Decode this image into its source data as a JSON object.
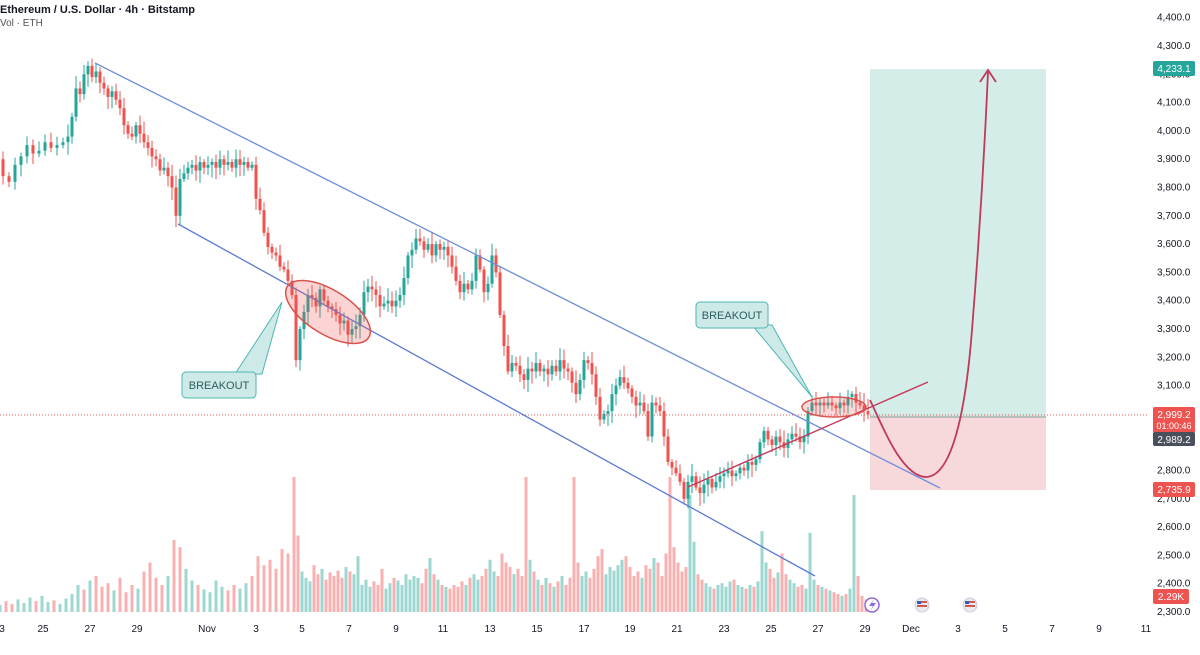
{
  "header": {
    "title": "Ethereum / U.S. Dollar · 4h · Bitstamp",
    "volume_label": "Vol · ETH"
  },
  "chart_data": {
    "type": "candlestick",
    "symbol": "ETHUSD",
    "timeframe": "4h",
    "exchange": "Bitstamp",
    "y_axis": {
      "ticks": [
        "2,300.0",
        "2,400.0",
        "2,500.0",
        "2,600.0",
        "2,700.0",
        "2,800.0",
        "2,900.0",
        "3,000.0",
        "3,100.0",
        "3,200.0",
        "3,300.0",
        "3,400.0",
        "3,500.0",
        "3,600.0",
        "3,700.0",
        "3,800.0",
        "3,900.0",
        "4,000.0",
        "4,100.0",
        "4,200.0",
        "4,300.0",
        "4,400.0"
      ],
      "range": [
        2300,
        4400
      ]
    },
    "x_axis": {
      "ticks": [
        "3",
        "25",
        "27",
        "29",
        "Nov",
        "3",
        "5",
        "7",
        "9",
        "11",
        "13",
        "15",
        "17",
        "19",
        "21",
        "23",
        "25",
        "27",
        "29",
        "Dec",
        "3",
        "5",
        "7",
        "9",
        "11"
      ]
    },
    "price_path": [
      [
        0,
        3900
      ],
      [
        6,
        3840
      ],
      [
        12,
        3820
      ],
      [
        18,
        3880
      ],
      [
        24,
        3910
      ],
      [
        30,
        3950
      ],
      [
        36,
        3920
      ],
      [
        42,
        3930
      ],
      [
        48,
        3960
      ],
      [
        54,
        3940
      ],
      [
        60,
        3950
      ],
      [
        66,
        3960
      ],
      [
        70,
        3980
      ],
      [
        74,
        4050
      ],
      [
        78,
        4150
      ],
      [
        82,
        4130
      ],
      [
        86,
        4200
      ],
      [
        90,
        4230
      ],
      [
        94,
        4190
      ],
      [
        98,
        4210
      ],
      [
        102,
        4170
      ],
      [
        106,
        4150
      ],
      [
        110,
        4120
      ],
      [
        114,
        4140
      ],
      [
        118,
        4110
      ],
      [
        122,
        4080
      ],
      [
        126,
        4020
      ],
      [
        130,
        3990
      ],
      [
        134,
        3980
      ],
      [
        138,
        4020
      ],
      [
        142,
        3990
      ],
      [
        146,
        3960
      ],
      [
        150,
        3940
      ],
      [
        154,
        3910
      ],
      [
        158,
        3900
      ],
      [
        162,
        3860
      ],
      [
        166,
        3870
      ],
      [
        170,
        3840
      ],
      [
        174,
        3800
      ],
      [
        178,
        3700
      ],
      [
        182,
        3830
      ],
      [
        186,
        3850
      ],
      [
        190,
        3870
      ],
      [
        194,
        3880
      ],
      [
        198,
        3860
      ],
      [
        202,
        3890
      ],
      [
        206,
        3870
      ],
      [
        210,
        3880
      ],
      [
        214,
        3890
      ],
      [
        218,
        3870
      ],
      [
        222,
        3900
      ],
      [
        226,
        3880
      ],
      [
        230,
        3890
      ],
      [
        234,
        3870
      ],
      [
        238,
        3900
      ],
      [
        242,
        3880
      ],
      [
        246,
        3890
      ],
      [
        250,
        3870
      ],
      [
        254,
        3880
      ],
      [
        258,
        3760
      ],
      [
        262,
        3720
      ],
      [
        266,
        3640
      ],
      [
        270,
        3590
      ],
      [
        274,
        3570
      ],
      [
        278,
        3560
      ],
      [
        282,
        3520
      ],
      [
        286,
        3510
      ],
      [
        290,
        3470
      ],
      [
        294,
        3420
      ],
      [
        298,
        3190
      ],
      [
        302,
        3300
      ],
      [
        306,
        3360
      ],
      [
        310,
        3420
      ],
      [
        314,
        3410
      ],
      [
        318,
        3380
      ],
      [
        322,
        3440
      ],
      [
        326,
        3400
      ],
      [
        330,
        3380
      ],
      [
        334,
        3370
      ],
      [
        338,
        3350
      ],
      [
        342,
        3320
      ],
      [
        346,
        3330
      ],
      [
        350,
        3280
      ],
      [
        354,
        3300
      ],
      [
        358,
        3310
      ],
      [
        362,
        3350
      ],
      [
        366,
        3430
      ],
      [
        370,
        3450
      ],
      [
        374,
        3440
      ],
      [
        378,
        3420
      ],
      [
        382,
        3380
      ],
      [
        386,
        3390
      ],
      [
        390,
        3400
      ],
      [
        394,
        3380
      ],
      [
        398,
        3400
      ],
      [
        402,
        3420
      ],
      [
        406,
        3480
      ],
      [
        410,
        3560
      ],
      [
        414,
        3580
      ],
      [
        418,
        3620
      ],
      [
        422,
        3610
      ],
      [
        426,
        3580
      ],
      [
        430,
        3600
      ],
      [
        434,
        3560
      ],
      [
        438,
        3600
      ],
      [
        442,
        3580
      ],
      [
        446,
        3590
      ],
      [
        450,
        3560
      ],
      [
        454,
        3520
      ],
      [
        458,
        3470
      ],
      [
        462,
        3430
      ],
      [
        466,
        3460
      ],
      [
        470,
        3440
      ],
      [
        474,
        3470
      ],
      [
        478,
        3560
      ],
      [
        482,
        3510
      ],
      [
        486,
        3430
      ],
      [
        490,
        3460
      ],
      [
        494,
        3560
      ],
      [
        498,
        3500
      ],
      [
        502,
        3350
      ],
      [
        506,
        3240
      ],
      [
        510,
        3150
      ],
      [
        514,
        3180
      ],
      [
        518,
        3170
      ],
      [
        522,
        3140
      ],
      [
        526,
        3120
      ],
      [
        530,
        3160
      ],
      [
        534,
        3150
      ],
      [
        538,
        3180
      ],
      [
        542,
        3150
      ],
      [
        546,
        3160
      ],
      [
        550,
        3140
      ],
      [
        554,
        3170
      ],
      [
        558,
        3150
      ],
      [
        562,
        3190
      ],
      [
        566,
        3160
      ],
      [
        570,
        3150
      ],
      [
        574,
        3110
      ],
      [
        578,
        3070
      ],
      [
        582,
        3120
      ],
      [
        586,
        3190
      ],
      [
        590,
        3180
      ],
      [
        594,
        3140
      ],
      [
        598,
        3060
      ],
      [
        602,
        2980
      ],
      [
        606,
        3000
      ],
      [
        610,
        3010
      ],
      [
        614,
        3070
      ],
      [
        618,
        3100
      ],
      [
        622,
        3130
      ],
      [
        626,
        3110
      ],
      [
        630,
        3090
      ],
      [
        634,
        3060
      ],
      [
        638,
        3030
      ],
      [
        642,
        3040
      ],
      [
        646,
        3010
      ],
      [
        650,
        2920
      ],
      [
        654,
        3040
      ],
      [
        658,
        3030
      ],
      [
        662,
        3010
      ],
      [
        666,
        2920
      ],
      [
        670,
        2830
      ],
      [
        674,
        2810
      ],
      [
        678,
        2790
      ],
      [
        682,
        2760
      ],
      [
        686,
        2700
      ],
      [
        690,
        2760
      ],
      [
        694,
        2780
      ],
      [
        698,
        2740
      ],
      [
        702,
        2720
      ],
      [
        706,
        2750
      ],
      [
        710,
        2770
      ],
      [
        714,
        2740
      ],
      [
        718,
        2760
      ],
      [
        722,
        2780
      ],
      [
        726,
        2790
      ],
      [
        730,
        2800
      ],
      [
        734,
        2780
      ],
      [
        738,
        2790
      ],
      [
        742,
        2810
      ],
      [
        746,
        2800
      ],
      [
        750,
        2830
      ],
      [
        754,
        2820
      ],
      [
        758,
        2840
      ],
      [
        762,
        2900
      ],
      [
        766,
        2940
      ],
      [
        770,
        2910
      ],
      [
        774,
        2890
      ],
      [
        778,
        2920
      ],
      [
        782,
        2900
      ],
      [
        786,
        2880
      ],
      [
        790,
        2910
      ],
      [
        794,
        2930
      ],
      [
        798,
        2920
      ],
      [
        802,
        2900
      ],
      [
        806,
        2920
      ],
      [
        810,
        3010
      ],
      [
        814,
        3040
      ],
      [
        818,
        3030
      ],
      [
        822,
        3040
      ],
      [
        826,
        3030
      ],
      [
        830,
        3040
      ],
      [
        834,
        3030
      ],
      [
        838,
        3020
      ],
      [
        842,
        3040
      ],
      [
        846,
        3030
      ],
      [
        850,
        3060
      ],
      [
        854,
        3070
      ],
      [
        858,
        3040
      ],
      [
        862,
        3030
      ],
      [
        866,
        3010
      ],
      [
        870,
        2999
      ]
    ],
    "volume_path": [
      [
        0,
        8
      ],
      [
        6,
        12
      ],
      [
        12,
        9
      ],
      [
        18,
        14
      ],
      [
        24,
        10
      ],
      [
        30,
        16
      ],
      [
        36,
        12
      ],
      [
        42,
        18
      ],
      [
        48,
        11
      ],
      [
        54,
        13
      ],
      [
        60,
        9
      ],
      [
        66,
        15
      ],
      [
        72,
        20
      ],
      [
        78,
        30
      ],
      [
        84,
        25
      ],
      [
        90,
        35
      ],
      [
        96,
        40
      ],
      [
        102,
        28
      ],
      [
        108,
        32
      ],
      [
        114,
        24
      ],
      [
        120,
        38
      ],
      [
        126,
        22
      ],
      [
        132,
        30
      ],
      [
        138,
        26
      ],
      [
        144,
        45
      ],
      [
        150,
        55
      ],
      [
        156,
        38
      ],
      [
        162,
        30
      ],
      [
        168,
        40
      ],
      [
        174,
        80
      ],
      [
        180,
        72
      ],
      [
        186,
        48
      ],
      [
        192,
        35
      ],
      [
        198,
        30
      ],
      [
        204,
        25
      ],
      [
        210,
        22
      ],
      [
        216,
        35
      ],
      [
        222,
        28
      ],
      [
        228,
        24
      ],
      [
        234,
        30
      ],
      [
        240,
        26
      ],
      [
        246,
        32
      ],
      [
        252,
        40
      ],
      [
        258,
        62
      ],
      [
        264,
        52
      ],
      [
        270,
        58
      ],
      [
        276,
        48
      ],
      [
        282,
        70
      ],
      [
        288,
        65
      ],
      [
        294,
        150
      ],
      [
        298,
        85
      ],
      [
        302,
        45
      ],
      [
        306,
        38
      ],
      [
        310,
        34
      ],
      [
        314,
        52
      ],
      [
        318,
        42
      ],
      [
        322,
        48
      ],
      [
        326,
        36
      ],
      [
        330,
        44
      ],
      [
        334,
        40
      ],
      [
        338,
        46
      ],
      [
        342,
        38
      ],
      [
        346,
        50
      ],
      [
        350,
        45
      ],
      [
        354,
        42
      ],
      [
        358,
        62
      ],
      [
        362,
        30
      ],
      [
        366,
        36
      ],
      [
        370,
        28
      ],
      [
        374,
        34
      ],
      [
        378,
        30
      ],
      [
        382,
        48
      ],
      [
        386,
        26
      ],
      [
        390,
        32
      ],
      [
        394,
        38
      ],
      [
        398,
        35
      ],
      [
        402,
        30
      ],
      [
        406,
        42
      ],
      [
        410,
        36
      ],
      [
        414,
        40
      ],
      [
        418,
        38
      ],
      [
        422,
        32
      ],
      [
        426,
        48
      ],
      [
        430,
        60
      ],
      [
        434,
        42
      ],
      [
        438,
        36
      ],
      [
        442,
        30
      ],
      [
        446,
        28
      ],
      [
        450,
        26
      ],
      [
        454,
        30
      ],
      [
        458,
        28
      ],
      [
        462,
        34
      ],
      [
        466,
        30
      ],
      [
        470,
        38
      ],
      [
        474,
        42
      ],
      [
        478,
        36
      ],
      [
        482,
        40
      ],
      [
        486,
        48
      ],
      [
        490,
        58
      ],
      [
        494,
        45
      ],
      [
        498,
        40
      ],
      [
        502,
        65
      ],
      [
        506,
        55
      ],
      [
        510,
        50
      ],
      [
        514,
        42
      ],
      [
        518,
        48
      ],
      [
        522,
        40
      ],
      [
        526,
        150
      ],
      [
        530,
        58
      ],
      [
        534,
        45
      ],
      [
        538,
        36
      ],
      [
        542,
        30
      ],
      [
        546,
        38
      ],
      [
        550,
        32
      ],
      [
        554,
        28
      ],
      [
        558,
        34
      ],
      [
        562,
        40
      ],
      [
        566,
        30
      ],
      [
        570,
        38
      ],
      [
        574,
        150
      ],
      [
        578,
        55
      ],
      [
        582,
        40
      ],
      [
        586,
        45
      ],
      [
        590,
        38
      ],
      [
        594,
        48
      ],
      [
        598,
        62
      ],
      [
        602,
        70
      ],
      [
        606,
        42
      ],
      [
        610,
        50
      ],
      [
        614,
        46
      ],
      [
        618,
        52
      ],
      [
        622,
        58
      ],
      [
        626,
        62
      ],
      [
        630,
        50
      ],
      [
        634,
        40
      ],
      [
        638,
        45
      ],
      [
        642,
        38
      ],
      [
        646,
        52
      ],
      [
        650,
        48
      ],
      [
        654,
        60
      ],
      [
        658,
        55
      ],
      [
        662,
        40
      ],
      [
        666,
        65
      ],
      [
        670,
        150
      ],
      [
        674,
        72
      ],
      [
        678,
        55
      ],
      [
        682,
        45
      ],
      [
        686,
        50
      ],
      [
        690,
        130
      ],
      [
        694,
        78
      ],
      [
        698,
        42
      ],
      [
        702,
        36
      ],
      [
        706,
        32
      ],
      [
        710,
        28
      ],
      [
        714,
        26
      ],
      [
        718,
        30
      ],
      [
        722,
        32
      ],
      [
        726,
        28
      ],
      [
        730,
        34
      ],
      [
        734,
        36
      ],
      [
        738,
        30
      ],
      [
        742,
        28
      ],
      [
        746,
        26
      ],
      [
        750,
        30
      ],
      [
        754,
        28
      ],
      [
        758,
        34
      ],
      [
        762,
        90
      ],
      [
        766,
        55
      ],
      [
        770,
        48
      ],
      [
        774,
        38
      ],
      [
        778,
        44
      ],
      [
        782,
        65
      ],
      [
        786,
        42
      ],
      [
        790,
        36
      ],
      [
        794,
        32
      ],
      [
        798,
        28
      ],
      [
        802,
        30
      ],
      [
        806,
        26
      ],
      [
        810,
        88
      ],
      [
        814,
        36
      ],
      [
        818,
        30
      ],
      [
        822,
        28
      ],
      [
        826,
        26
      ],
      [
        830,
        24
      ],
      [
        834,
        22
      ],
      [
        838,
        20
      ],
      [
        842,
        18
      ],
      [
        846,
        20
      ],
      [
        850,
        26
      ],
      [
        854,
        130
      ],
      [
        858,
        40
      ],
      [
        862,
        18
      ],
      [
        866,
        14
      ]
    ],
    "price_labels": {
      "target": "4,233.1",
      "current": "2,999.2",
      "countdown": "01:00:46",
      "entry": "2,989.2",
      "stop": "2,735.9",
      "volume": "2.29K"
    },
    "annotations": [
      "BREAKOUT",
      "BREAKOUT"
    ],
    "colors": {
      "up": "#26a69a",
      "down": "#ef5350",
      "channel": "#6f8fd8",
      "curve": "#c0395a",
      "target_zone": "#d5ede8",
      "stop_zone": "#f7d9dc"
    }
  }
}
